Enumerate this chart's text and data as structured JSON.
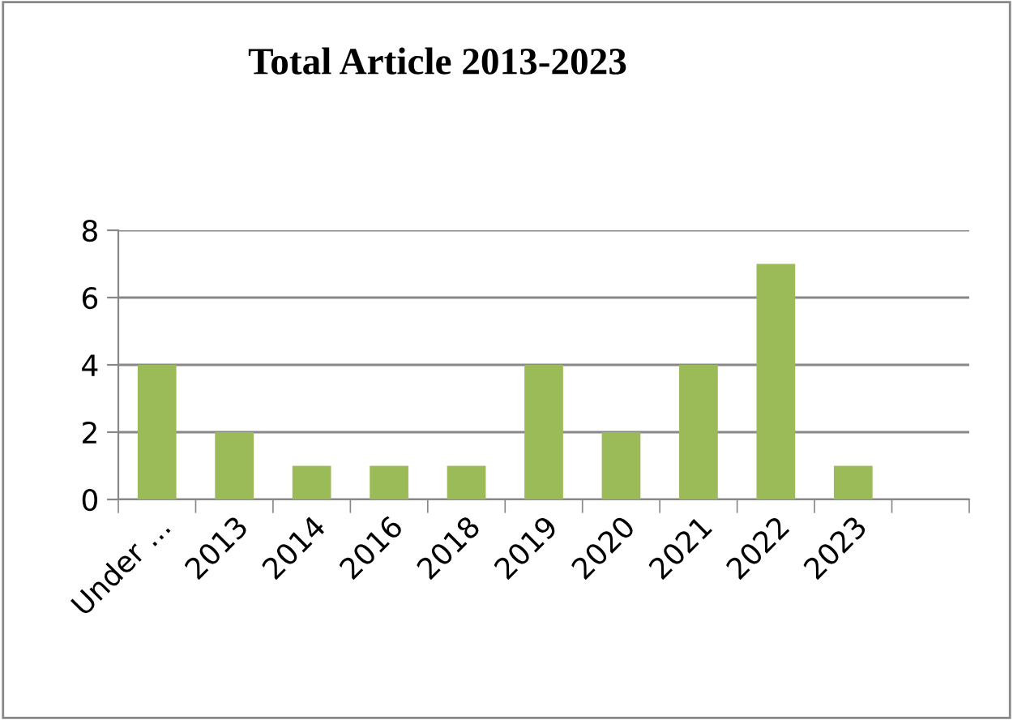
{
  "chart_data": {
    "type": "bar",
    "title": "Total Article 2013-2023",
    "categories": [
      "Under ...",
      "2013",
      "2014",
      "2016",
      "2018",
      "2019",
      "2020",
      "2021",
      "2022",
      "2023",
      null
    ],
    "values": [
      4,
      2,
      1,
      1,
      1,
      4,
      2,
      4,
      7,
      1,
      null
    ],
    "color": "#9bbb59",
    "ylim": [
      0,
      8
    ],
    "yticks": [
      0,
      2,
      4,
      6,
      8
    ],
    "grid": "y",
    "legend": false
  }
}
